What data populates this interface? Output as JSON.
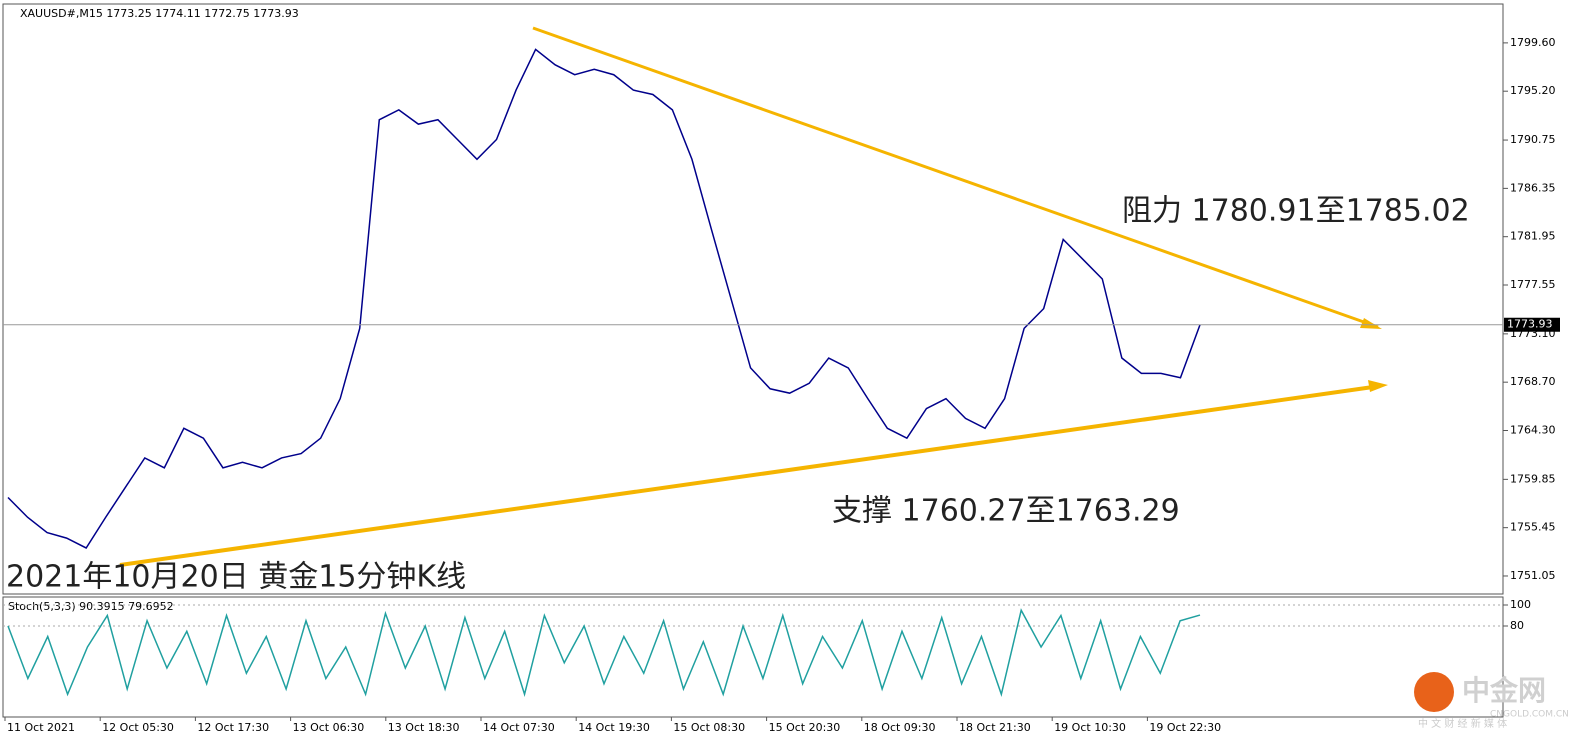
{
  "chart_data": [
    {
      "type": "line",
      "title": "XAUUSD#,M15  1773.25 1774.11 1772.75 1773.93",
      "color": "#00008b",
      "values": [
        1758.2,
        1756.4,
        1755.0,
        1754.5,
        1753.6,
        1756.4,
        1759.1,
        1761.8,
        1760.9,
        1764.5,
        1763.6,
        1760.9,
        1761.4,
        1760.9,
        1761.8,
        1762.2,
        1763.6,
        1767.2,
        1773.6,
        1792.6,
        1793.5,
        1792.2,
        1792.6,
        1790.8,
        1789.0,
        1790.8,
        1795.3,
        1799.0,
        1797.6,
        1796.7,
        1797.2,
        1796.7,
        1795.3,
        1794.9,
        1793.5,
        1789.0,
        1782.6,
        1776.3,
        1770.0,
        1768.1,
        1767.7,
        1768.6,
        1770.9,
        1770.0,
        1767.2,
        1764.5,
        1763.6,
        1766.3,
        1767.2,
        1765.4,
        1764.5,
        1767.2,
        1773.6,
        1775.4,
        1781.7,
        1779.9,
        1778.1,
        1770.9,
        1769.5,
        1769.5,
        1769.1,
        1773.93
      ],
      "last_price": 1773.93,
      "ylim": [
        1749.5,
        1803.05
      ],
      "yticks": [
        {
          "value": 1799.6,
          "label": "1799.60"
        },
        {
          "value": 1795.2,
          "label": "1795.20"
        },
        {
          "value": 1790.75,
          "label": "1790.75"
        },
        1786.35,
        1781.95,
        1777.55,
        {
          "value": 1773.1,
          "label": "1773.10"
        },
        {
          "value": 1768.7,
          "label": "1768.70"
        },
        {
          "value": 1764.3,
          "label": "1764.30"
        },
        1759.85,
        1755.45,
        1751.05
      ],
      "x_tick_labels": [
        "11 Oct 2021",
        "12 Oct 05:30",
        "12 Oct 17:30",
        "13 Oct 06:30",
        "13 Oct 18:30",
        "14 Oct 07:30",
        "14 Oct 19:30",
        "15 Oct 08:30",
        "15 Oct 20:30",
        "18 Oct 09:30",
        "18 Oct 21:30",
        "19 Oct 10:30",
        "19 Oct 22:30"
      ],
      "annotations": {
        "resistance": "阻力 1780.91至1785.02",
        "support": "支撑 1760.27至1763.29",
        "caption": "2021年10月20日 黄金15分钟K线"
      }
    },
    {
      "type": "line",
      "title": "Stoch(5,3,3) 90.3915 79.6952",
      "color": "#20a0a0",
      "values": [
        80,
        30,
        70,
        15,
        60,
        90,
        20,
        85,
        40,
        75,
        25,
        90,
        35,
        70,
        20,
        85,
        30,
        60,
        15,
        92,
        40,
        80,
        20,
        88,
        30,
        75,
        15,
        90,
        45,
        80,
        25,
        70,
        35,
        85,
        20,
        65,
        15,
        80,
        30,
        90,
        25,
        70,
        40,
        85,
        20,
        75,
        30,
        88,
        25,
        70,
        15,
        95,
        60,
        90,
        30,
        85,
        20,
        70,
        35,
        85,
        90.39
      ],
      "ylim": [
        0,
        100
      ],
      "yticks": [
        100,
        80
      ]
    }
  ],
  "watermark": {
    "brand": "中金网",
    "site": "CNGOLD.COM.CN",
    "slogan": "中 文 财 经 新 媒 体"
  }
}
